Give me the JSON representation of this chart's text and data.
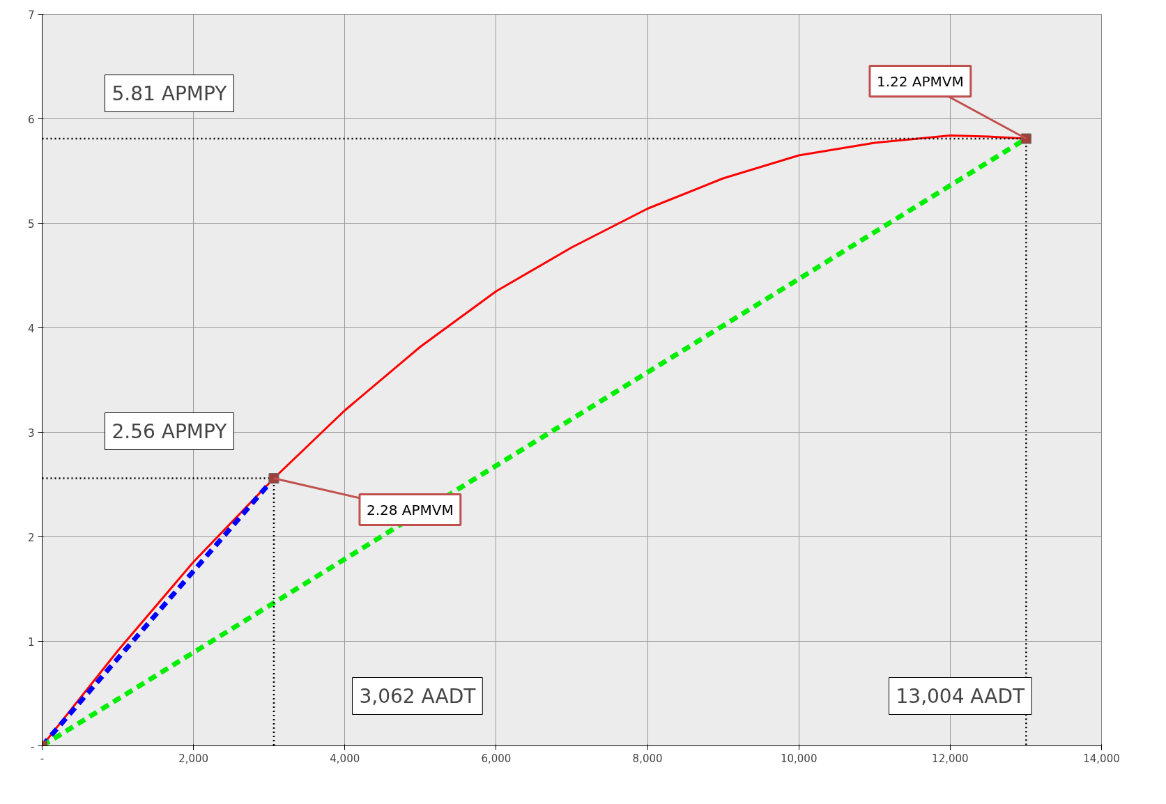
{
  "chart_data": {
    "type": "line",
    "xlim": [
      0,
      14000
    ],
    "ylim": [
      0,
      7
    ],
    "xticks": [
      {
        "value": 0,
        "label": "-"
      },
      {
        "value": 2000,
        "label": "2,000"
      },
      {
        "value": 4000,
        "label": "4,000"
      },
      {
        "value": 6000,
        "label": "6,000"
      },
      {
        "value": 8000,
        "label": "8,000"
      },
      {
        "value": 10000,
        "label": "10,000"
      },
      {
        "value": 12000,
        "label": "12,000"
      },
      {
        "value": 14000,
        "label": "14,000"
      }
    ],
    "yticks": [
      {
        "value": 0,
        "label": "-"
      },
      1,
      2,
      3,
      4,
      5,
      6,
      7
    ],
    "grid": true,
    "series": [
      {
        "color": "#ff0000",
        "line_style": "solid",
        "x": [
          0,
          1000,
          2000,
          3062,
          4000,
          5000,
          6000,
          7000,
          8000,
          9000,
          10000,
          11000,
          12000,
          12500,
          13004
        ],
        "values": [
          0,
          0.91,
          1.76,
          2.56,
          3.21,
          3.82,
          4.35,
          4.77,
          5.14,
          5.43,
          5.65,
          5.77,
          5.84,
          5.83,
          5.81
        ]
      },
      {
        "color": "#0000ff",
        "line_style": "dashed",
        "x": [
          0,
          3062
        ],
        "values": [
          0,
          2.56
        ]
      },
      {
        "color": "#00ee00",
        "line_style": "dashed",
        "x": [
          0,
          13004
        ],
        "values": [
          0,
          5.81
        ]
      },
      {
        "color": "#000000",
        "line_style": "dotted",
        "x": [
          0,
          13004,
          13004
        ],
        "values": [
          5.81,
          5.81,
          0
        ]
      },
      {
        "color": "#000000",
        "line_style": "dotted",
        "x": [
          0,
          3062,
          3062
        ],
        "values": [
          2.56,
          2.56,
          0
        ]
      },
      {
        "type": "scatter",
        "marker": "square",
        "color": "#a0403c",
        "x": [
          0,
          3062,
          13004
        ],
        "values": [
          0,
          2.56,
          5.81
        ]
      }
    ],
    "annotations": [
      "5.81 APMPY",
      "2.56 APMPY",
      "3,062 AADT",
      "13,004 AADT",
      {
        "text": "1.22 APMVM",
        "x": 13004,
        "y": 5.81
      },
      {
        "text": "2.28 APMVM",
        "x": 3062,
        "y": 2.56
      }
    ]
  }
}
